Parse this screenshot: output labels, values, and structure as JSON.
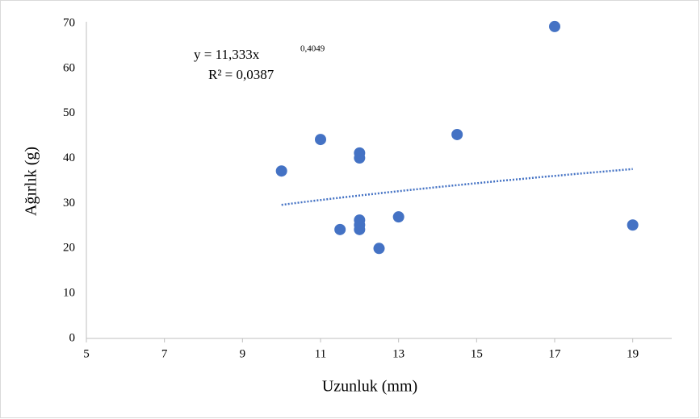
{
  "chart_data": {
    "type": "scatter",
    "x_label": "Uzunluk (mm)",
    "y_label": "Ağırlık (g)",
    "series": [
      {
        "color": "#4472c4",
        "x": [
          10,
          11,
          11.5,
          12,
          12,
          12,
          12,
          12,
          12.5,
          13,
          14.5,
          17,
          19
        ],
        "values": [
          37.2,
          44.2,
          24.2,
          41.2,
          40.1,
          26.3,
          25.2,
          24.2,
          20,
          27,
          45.3,
          69.3,
          25.2
        ]
      }
    ],
    "trendline": {
      "kind": "power",
      "equation": "y = 11,333x",
      "exponent": "0,4049",
      "r_squared": "R² = 0,0387"
    },
    "xlim": [
      5,
      20
    ],
    "xticks": [
      5,
      7,
      9,
      11,
      13,
      15,
      17,
      19
    ],
    "ylim": [
      0,
      70
    ],
    "yticks": [
      0,
      10,
      20,
      30,
      40,
      50,
      60,
      70
    ]
  }
}
